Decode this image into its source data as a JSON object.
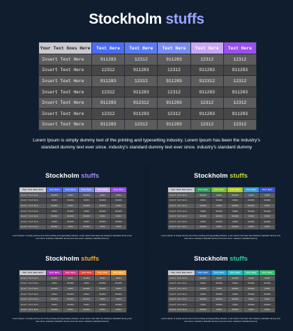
{
  "title": {
    "main": "Stockholm",
    "accent": "stuffs"
  },
  "table": {
    "headers": [
      "Your Text Goes Here",
      "Text Here",
      "Text Here",
      "Text Here",
      "Text Here",
      "Text Here"
    ],
    "rows": [
      [
        "Insert Text Here",
        "911283",
        "12312",
        "911283",
        "12312",
        "12312"
      ],
      [
        "Insert Text Here",
        "12312",
        "911283",
        "12312",
        "911283",
        "911283"
      ],
      [
        "Insert Text Here",
        "911283",
        "12312",
        "911283",
        "912312",
        "12312"
      ],
      [
        "Insert Text Here",
        "12312",
        "911283",
        "12312",
        "911283",
        "911283"
      ],
      [
        "Insert Text Here",
        "911283",
        "912312",
        "911283",
        "12312",
        "12312"
      ],
      [
        "Insert Text Here",
        "12312",
        "911283",
        "12312",
        "911283",
        "911283"
      ],
      [
        "Insert Text Here",
        "911283",
        "12312",
        "911283",
        "12312",
        "12312"
      ]
    ]
  },
  "description": "Lorem Ipsum is simply dummy text of the printing and typesetting industry.  Lorem Ipsum has been the industry's standard dummy text ever since. industry's standard dummy text ever since. industry's standard dummy",
  "slides": [
    {
      "header_colors": [
        "#4a6cf7",
        "#5b7af2",
        "#7a8cf0",
        "#c9a6f5",
        "#9b4ff0"
      ]
    },
    {
      "header_colors": [
        "#4a6cf7",
        "#5b7af2",
        "#7a8cf0",
        "#c9a6f5",
        "#9b4ff0"
      ],
      "accent_color": "#a78bfa"
    },
    {
      "header_colors": [
        "#2e9e57",
        "#7bbf3a",
        "#b5cc2e",
        "#3a9fd6",
        "#3d55d4"
      ],
      "accent_color": "#c6d93a"
    },
    {
      "header_colors": [
        "#b933c9",
        "#d93a8a",
        "#e8473d",
        "#f07a2c",
        "#f2a93b"
      ],
      "accent_color": "#f2a93b"
    },
    {
      "header_colors": [
        "#2e7fd6",
        "#2aa6d8",
        "#26c2c2",
        "#2fc59a",
        "#36c46e"
      ],
      "accent_color": "#2fd1a5"
    }
  ]
}
